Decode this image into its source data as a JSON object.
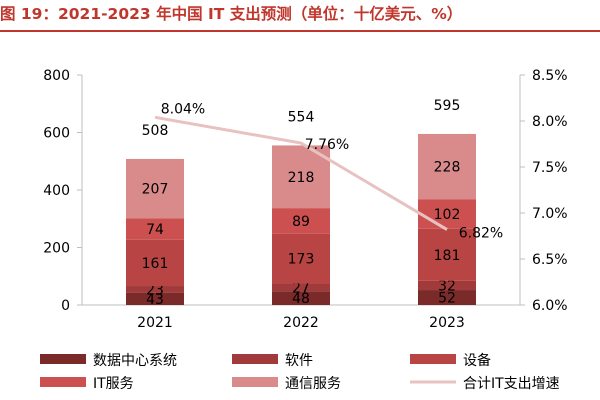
{
  "title": "图 19：2021-2023 年中国 IT 支出预测（单位：十亿美元、%）",
  "colors": {
    "title": "#c0362c",
    "series": [
      "#7b2a2a",
      "#a13b3b",
      "#b94444",
      "#cd5050",
      "#d98b8b"
    ],
    "line": "#e8c1c1"
  },
  "chart_data": {
    "type": "bar",
    "stacked": true,
    "categories": [
      "2021",
      "2022",
      "2023"
    ],
    "series": [
      {
        "name": "数据中心系统",
        "values": [
          43,
          48,
          52
        ]
      },
      {
        "name": "软件",
        "values": [
          23,
          27,
          32
        ]
      },
      {
        "name": "设备",
        "values": [
          161,
          173,
          181
        ]
      },
      {
        "name": "IT服务",
        "values": [
          74,
          89,
          102
        ]
      },
      {
        "name": "通信服务",
        "values": [
          207,
          218,
          228
        ]
      }
    ],
    "totals": [
      508,
      554,
      595
    ],
    "line_series": {
      "name": "合计IT支出增速",
      "values": [
        8.04,
        7.76,
        6.82
      ],
      "labels": [
        "8.04%",
        "7.76%",
        "6.82%"
      ],
      "axis": "right"
    },
    "ylim": [
      0,
      800
    ],
    "y_ticks": [
      "0",
      "200",
      "400",
      "600",
      "800"
    ],
    "y2lim": [
      6.0,
      8.5
    ],
    "y2_ticks": [
      "6.0%",
      "6.5%",
      "7.0%",
      "7.5%",
      "8.0%",
      "8.5%"
    ],
    "legend_position": "bottom",
    "grid": false
  }
}
